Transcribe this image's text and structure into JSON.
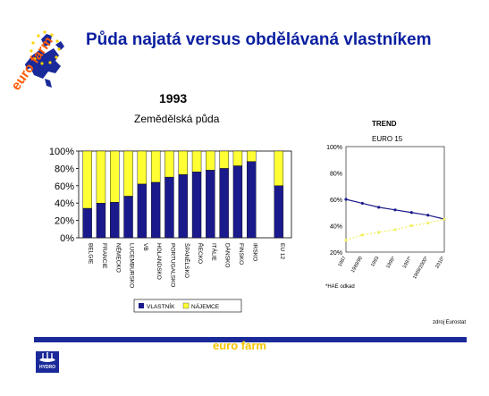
{
  "header": {
    "title": "Půda najatá versus obdělávaná vlastníkem",
    "logo_text": "euro farm"
  },
  "main_chart": {
    "year": "1993",
    "subtitle": "Zemědělská půda"
  },
  "chart_data": [
    {
      "type": "bar",
      "stacked": true,
      "categories": [
        "BELGIE",
        "FRANCIE",
        "NĚMECKO",
        "LUCEMBURSKO",
        "VB",
        "HOLANDSKO",
        "PORTUGALSKO",
        "ŠPANĚLSKO",
        "ŘECKO",
        "ITÁLIE",
        "DÁNSKO",
        "FINSKO",
        "IRSKO",
        "EU 12"
      ],
      "series": [
        {
          "name": "VLASTNÍK",
          "color": "#1a1a8c",
          "values": [
            34,
            40,
            41,
            48,
            62,
            64,
            70,
            73,
            76,
            78,
            80,
            83,
            88,
            60
          ]
        },
        {
          "name": "NÁJEMCE",
          "color": "#ffff33",
          "values": [
            66,
            60,
            59,
            52,
            38,
            36,
            30,
            27,
            24,
            22,
            20,
            17,
            12,
            40
          ]
        }
      ],
      "yticks": [
        "0%",
        "20%",
        "40%",
        "60%",
        "80%",
        "100%"
      ],
      "ylim": [
        0,
        100
      ],
      "grid": false,
      "legend": "bottom"
    },
    {
      "type": "line",
      "title": "TREND",
      "subtitle": "EURO 15",
      "x": [
        "1987",
        "1989/90",
        "1993",
        "1995*",
        "1997*",
        "1999/2000*",
        "2010*"
      ],
      "series": [
        {
          "name": "VLASTNÍK",
          "color": "#1a1a8c",
          "values": [
            60,
            57,
            54,
            52,
            50,
            48,
            45
          ]
        },
        {
          "name": "NÁJEMCE",
          "color": "#f0f060",
          "values": [
            29,
            33,
            35,
            37,
            40,
            42,
            45
          ]
        }
      ],
      "yticks": [
        "20%",
        "40%",
        "60%",
        "80%",
        "100%"
      ],
      "ylim": [
        20,
        100
      ],
      "note": "*HAE odkad",
      "source": "zdroj Eurostat"
    }
  ],
  "footer": {
    "brand": "euro farm",
    "company": "HYDRO"
  }
}
